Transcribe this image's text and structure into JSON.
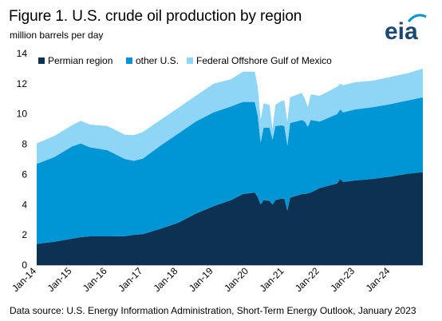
{
  "header": {
    "title": "Figure 1. U.S. crude oil production by region",
    "subtitle": "million barrels per day",
    "logo_text": "eia"
  },
  "footer": {
    "source": "Data source: U.S. Energy Information Administration, Short-Term Energy Outlook, January 2023"
  },
  "colors": {
    "permian": "#0d3150",
    "other_us": "#0096d6",
    "gulf": "#8fd5f5",
    "logo": "#1a4873",
    "logo_arc": "#0096d6"
  },
  "chart_data": {
    "type": "area",
    "stacked": true,
    "xlabel": "",
    "ylabel": "",
    "ylim": [
      0,
      14
    ],
    "y_ticks": [
      0,
      2,
      4,
      6,
      8,
      10,
      12,
      14
    ],
    "x_ticks": [
      "Jan-14",
      "Jan-15",
      "Jan-16",
      "Jan-17",
      "Jan-18",
      "Jan-19",
      "Jan-20",
      "Jan-21",
      "Jan-22",
      "Jan-23",
      "Jan-24"
    ],
    "grid": false,
    "legend_position": "top",
    "x": [
      "2014-01",
      "2014-07",
      "2015-01",
      "2015-04",
      "2015-07",
      "2016-01",
      "2016-07",
      "2016-10",
      "2017-01",
      "2017-07",
      "2018-01",
      "2018-07",
      "2019-01",
      "2019-07",
      "2019-11",
      "2020-03",
      "2020-04",
      "2020-05",
      "2020-06",
      "2020-08",
      "2020-09",
      "2020-10",
      "2020-12",
      "2021-01",
      "2021-02",
      "2021-03",
      "2021-07",
      "2021-08",
      "2021-09",
      "2021-10",
      "2022-01",
      "2022-07",
      "2022-08",
      "2022-09",
      "2023-01",
      "2023-07",
      "2024-01",
      "2024-07",
      "2024-12"
    ],
    "series": [
      {
        "name": "Permian region",
        "values": [
          1.4,
          1.55,
          1.75,
          1.85,
          1.9,
          1.9,
          1.92,
          2.0,
          2.05,
          2.4,
          2.8,
          3.4,
          3.9,
          4.3,
          4.7,
          4.8,
          4.5,
          4.0,
          4.3,
          4.25,
          4.0,
          4.3,
          4.4,
          4.4,
          3.6,
          4.45,
          4.7,
          4.7,
          4.75,
          4.8,
          5.1,
          5.4,
          5.7,
          5.5,
          5.6,
          5.7,
          5.85,
          6.05,
          6.15
        ]
      },
      {
        "name": "other U.S.",
        "values": [
          5.3,
          5.6,
          6.1,
          6.2,
          5.9,
          5.7,
          5.1,
          4.9,
          5.0,
          5.5,
          5.9,
          6.1,
          6.2,
          6.2,
          6.1,
          6.0,
          5.4,
          4.1,
          4.8,
          4.85,
          4.3,
          4.9,
          4.85,
          4.8,
          4.3,
          4.95,
          4.9,
          4.8,
          4.4,
          4.8,
          4.4,
          4.6,
          4.6,
          4.6,
          4.7,
          4.75,
          4.8,
          4.85,
          4.95
        ]
      },
      {
        "name": "Federal Offshore Gulf of Mexico",
        "values": [
          1.35,
          1.4,
          1.4,
          1.5,
          1.5,
          1.6,
          1.6,
          1.7,
          1.75,
          1.7,
          1.7,
          1.7,
          1.9,
          1.8,
          2.0,
          2.0,
          1.9,
          1.5,
          1.6,
          1.5,
          0.7,
          1.4,
          1.6,
          1.7,
          1.6,
          1.7,
          1.8,
          1.5,
          1.3,
          1.7,
          1.7,
          1.8,
          1.7,
          1.8,
          1.8,
          1.75,
          1.8,
          1.8,
          1.9
        ]
      }
    ]
  }
}
